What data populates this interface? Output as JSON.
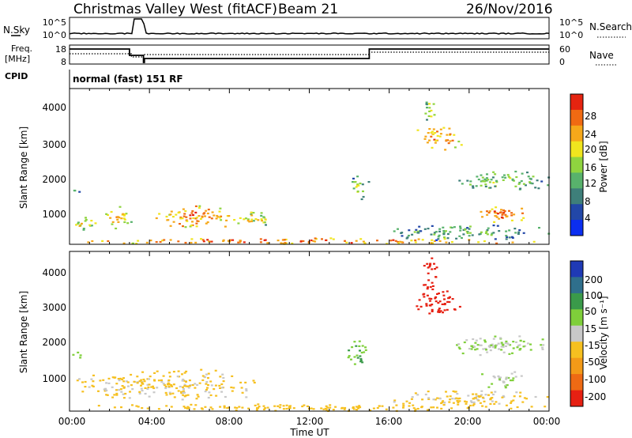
{
  "header": {
    "radar": "Christmas Valley West (fitACF)",
    "beam": "Beam 21",
    "date": "26/Nov/2016"
  },
  "top_panels": {
    "nsky": {
      "label": "N.Sky",
      "left_ticks": [
        "10^5",
        "10^0"
      ],
      "right_ticks": [
        "10^5",
        "10^0"
      ],
      "right_label": "N.Search"
    },
    "freq": {
      "label_line1": "Freq.",
      "label_line2": "[MHz]",
      "left_ticks": [
        "18",
        "8"
      ],
      "right_ticks": [
        "60",
        "0"
      ],
      "right_label": "Nave"
    },
    "cpid": {
      "label": "CPID",
      "text": "normal (fast) 151 RF"
    }
  },
  "power_panel": {
    "ylabel": "Slant Range [km]",
    "yticks": [
      "4000",
      "3000",
      "2000",
      "1000"
    ],
    "colorbar_label": "Power [dB]",
    "colorbar_ticks": [
      "28",
      "24",
      "20",
      "16",
      "12",
      "8",
      "4"
    ],
    "colors": [
      "#0b2ef0",
      "#2247a8",
      "#3e7f7a",
      "#58b26c",
      "#8fd43f",
      "#f0e51e",
      "#f6a81a",
      "#f06a12",
      "#e52410"
    ]
  },
  "velocity_panel": {
    "ylabel": "Slant Range [km]",
    "yticks": [
      "4000",
      "3000",
      "2000",
      "1000"
    ],
    "colorbar_label": "Velocity [m s⁻¹]",
    "colorbar_ticks": [
      "200",
      "100",
      "50",
      "15",
      "-15",
      "-50",
      "-100",
      "-200"
    ],
    "colors": [
      "#1f3ab5",
      "#2f6f8c",
      "#3a9a4a",
      "#7fcf3a",
      "#c8c8c8",
      "#f6c020",
      "#f39a18",
      "#ee6a14",
      "#e62012"
    ]
  },
  "xaxis": {
    "ticks": [
      "00:00",
      "04:00",
      "08:00",
      "12:00",
      "16:00",
      "20:00",
      "00:00"
    ],
    "label": "Time UT"
  },
  "chart_data": [
    {
      "type": "heatmap",
      "title": "Power [dB]",
      "xlabel": "Time UT",
      "ylabel": "Slant Range [km]",
      "x_range_hours": [
        0,
        24
      ],
      "ylim_km": [
        180,
        4600
      ],
      "color_range": [
        0,
        32
      ],
      "regions": [
        {
          "t": [
            0.0,
            1.3
          ],
          "r": [
            500,
            1100
          ],
          "dB": 14
        },
        {
          "t": [
            1.3,
            3.2
          ],
          "r": [
            650,
            1300
          ],
          "dB": 18
        },
        {
          "t": [
            4.3,
            8.3
          ],
          "r": [
            650,
            1300
          ],
          "dB": 20
        },
        {
          "t": [
            8.3,
            10.2
          ],
          "r": [
            700,
            1150
          ],
          "dB": 14
        },
        {
          "t": [
            0.0,
            0.6
          ],
          "r": [
            1650,
            1850
          ],
          "dB": 10
        },
        {
          "t": [
            0.0,
            24.0
          ],
          "r": [
            200,
            380
          ],
          "dB": 22
        },
        {
          "t": [
            13.8,
            15.0
          ],
          "r": [
            1450,
            2150
          ],
          "dB": 10
        },
        {
          "t": [
            17.2,
            19.6
          ],
          "r": [
            2800,
            3600
          ],
          "dB": 20
        },
        {
          "t": [
            17.6,
            18.4
          ],
          "r": [
            3500,
            4500
          ],
          "dB": 12
        },
        {
          "t": [
            19.0,
            24.0
          ],
          "r": [
            1700,
            2300
          ],
          "dB": 10
        },
        {
          "t": [
            20.4,
            22.8
          ],
          "r": [
            800,
            1350
          ],
          "dB": 22
        },
        {
          "t": [
            16.0,
            24.0
          ],
          "r": [
            300,
            800
          ],
          "dB": 8
        }
      ]
    },
    {
      "type": "heatmap",
      "title": "Velocity [m s⁻¹]",
      "xlabel": "Time UT",
      "ylabel": "Slant Range [km]",
      "x_range_hours": [
        0,
        24
      ],
      "ylim_km": [
        180,
        4600
      ],
      "color_range": [
        -200,
        200
      ],
      "regions": [
        {
          "t": [
            0.0,
            10.2
          ],
          "r": [
            500,
            1350
          ],
          "v": -20
        },
        {
          "t": [
            0.0,
            24.0
          ],
          "r": [
            200,
            400
          ],
          "v": -30
        },
        {
          "t": [
            0.0,
            0.6
          ],
          "r": [
            1650,
            1850
          ],
          "v": 20
        },
        {
          "t": [
            13.8,
            15.0
          ],
          "r": [
            1450,
            2150
          ],
          "v": 30
        },
        {
          "t": [
            17.2,
            19.6
          ],
          "r": [
            2800,
            3600
          ],
          "v": -200
        },
        {
          "t": [
            17.6,
            18.4
          ],
          "r": [
            3500,
            4500
          ],
          "v": -200
        },
        {
          "t": [
            19.0,
            24.0
          ],
          "r": [
            1700,
            2300
          ],
          "v": 0
        },
        {
          "t": [
            20.4,
            22.8
          ],
          "r": [
            800,
            1350
          ],
          "v": 0
        },
        {
          "t": [
            16.0,
            24.0
          ],
          "r": [
            300,
            800
          ],
          "v": -20
        }
      ]
    }
  ]
}
